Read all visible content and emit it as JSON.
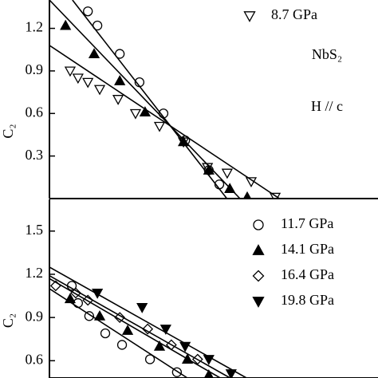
{
  "chart_data": [
    {
      "type": "scatter",
      "ylabel": "C₂",
      "xlim": [
        0,
        100
      ],
      "ylim": [
        0,
        1.4
      ],
      "yticks": [
        0.3,
        0.6,
        0.9,
        1.2
      ],
      "annotations": [
        "NbS₂",
        "H // c"
      ],
      "series": [
        {
          "marker": "circle",
          "filled": false,
          "color": "#000000",
          "x": [
            11.7,
            14.6,
            21.4,
            27.4,
            34.7,
            41.3,
            48.5,
            51.7
          ],
          "values": [
            1.32,
            1.22,
            1.02,
            0.82,
            0.6,
            0.41,
            0.2,
            0.1
          ],
          "fit_x": [
            7,
            54
          ],
          "fit_y": [
            1.4,
            0
          ]
        },
        {
          "marker": "triangle-up",
          "filled": true,
          "color": "#000000",
          "x": [
            4.9,
            13.6,
            21.4,
            29.1,
            40.8,
            48.5,
            54.9,
            60.2
          ],
          "values": [
            1.22,
            1.02,
            0.83,
            0.61,
            0.4,
            0.2,
            0.07,
            0.01
          ],
          "fit_x": [
            0,
            58
          ],
          "fit_y": [
            1.4,
            0
          ]
        },
        {
          "name": "8.7 GPa",
          "marker": "triangle-down",
          "filled": false,
          "color": "#000000",
          "x": [
            6.3,
            8.7,
            11.7,
            15.3,
            20.9,
            26.2,
            33.5,
            40.8,
            48.1,
            54.1,
            61.4,
            68.7
          ],
          "values": [
            0.9,
            0.85,
            0.82,
            0.77,
            0.7,
            0.6,
            0.51,
            0.4,
            0.22,
            0.18,
            0.12,
            0.01
          ],
          "fit_x": [
            0,
            70
          ],
          "fit_y": [
            1.08,
            0
          ]
        }
      ]
    },
    {
      "type": "scatter",
      "ylabel": "C₂",
      "xlim": [
        0,
        100
      ],
      "ylim": [
        0.48,
        1.72
      ],
      "yticks": [
        0.6,
        0.9,
        1.2,
        1.5
      ],
      "series": [
        {
          "name": "11.7 GPa",
          "marker": "circle",
          "filled": false,
          "color": "#000000",
          "x": [
            6.8,
            8.7,
            12.1,
            17,
            22.1,
            30.6,
            38.8
          ],
          "values": [
            1.12,
            1.0,
            0.91,
            0.79,
            0.71,
            0.61,
            0.52
          ],
          "fit_x": [
            0,
            42
          ],
          "fit_y": [
            1.1,
            0.48
          ]
        },
        {
          "name": "14.1 GPa",
          "marker": "triangle-up",
          "filled": true,
          "color": "#000000",
          "x": [
            6.3,
            15.3,
            23.8,
            33.5,
            42,
            48.5
          ],
          "values": [
            1.03,
            0.91,
            0.81,
            0.7,
            0.61,
            0.5
          ],
          "fit_x": [
            0,
            52
          ],
          "fit_y": [
            1.17,
            0.48
          ]
        },
        {
          "name": "16.4 GPa",
          "marker": "diamond",
          "filled": false,
          "color": "#000000",
          "x": [
            1.9,
            8,
            11.7,
            21.4,
            29.9,
            37.1,
            45.1
          ],
          "values": [
            1.12,
            1.07,
            1.02,
            0.9,
            0.82,
            0.71,
            0.61
          ],
          "fit_x": [
            0,
            55
          ],
          "fit_y": [
            1.19,
            0.48
          ]
        },
        {
          "name": "19.8 GPa",
          "marker": "triangle-down",
          "filled": true,
          "color": "#000000",
          "x": [
            14.6,
            28.2,
            35.4,
            41.3,
            48.5,
            55.3
          ],
          "values": [
            1.07,
            0.97,
            0.82,
            0.7,
            0.61,
            0.51
          ],
          "fit_x": [
            0,
            60
          ],
          "fit_y": [
            1.25,
            0.48
          ]
        }
      ]
    }
  ]
}
